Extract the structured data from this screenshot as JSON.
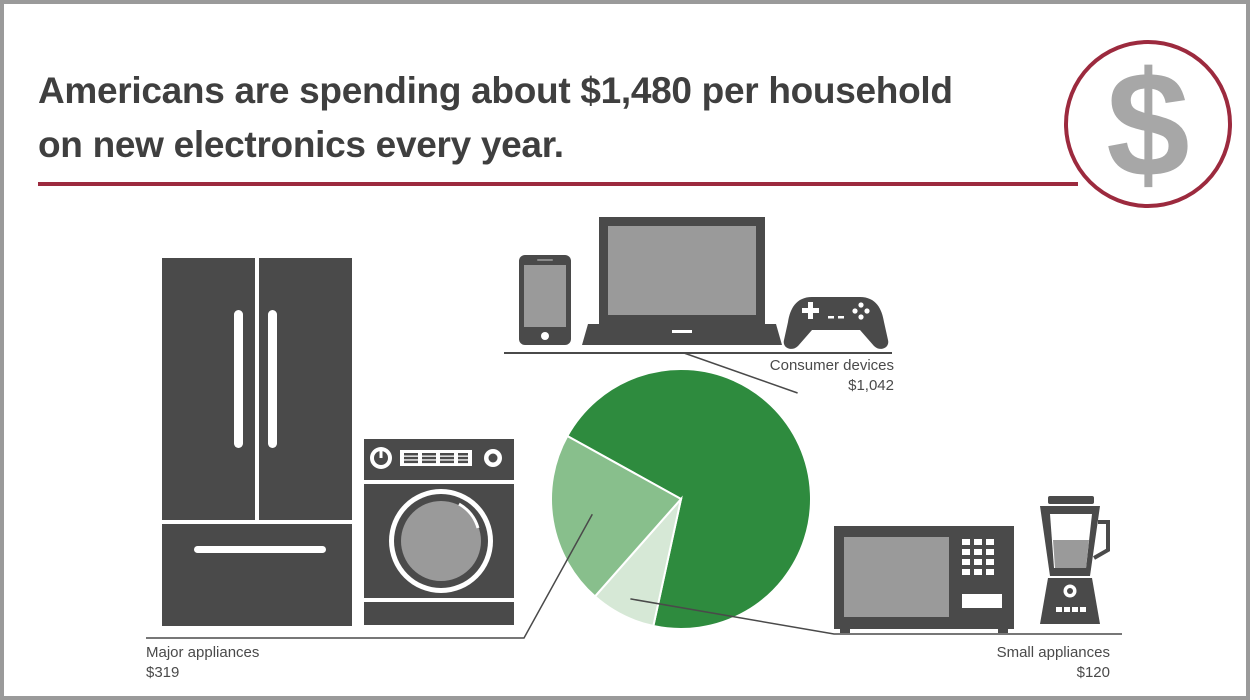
{
  "headline": {
    "line1": "Americans are spending about $1,480 per household",
    "line2": "on new electronics every year."
  },
  "badge": {
    "symbol": "$",
    "icon": "dollar-sign-icon"
  },
  "colors": {
    "accent": "#9c2a3e",
    "icon_gray": "#4a4a4a",
    "slice_consumer": "#2e8b3e",
    "slice_major": "#88bf8c",
    "slice_small": "#d6e8d6"
  },
  "icons": [
    "refrigerator-icon",
    "washing-machine-icon",
    "smartphone-icon",
    "laptop-icon",
    "game-controller-icon",
    "microwave-icon",
    "blender-icon"
  ],
  "chart_data": {
    "type": "pie",
    "title": "Americans are spending about $1,480 per household on new electronics every year.",
    "slices": [
      {
        "label": "Consumer devices",
        "value": 1042,
        "value_label": "$1,042",
        "color": "#2e8b3e"
      },
      {
        "label": "Small appliances",
        "value": 120,
        "value_label": "$120",
        "color": "#d6e8d6"
      },
      {
        "label": "Major appliances",
        "value": 319,
        "value_label": "$319",
        "color": "#88bf8c"
      }
    ]
  }
}
